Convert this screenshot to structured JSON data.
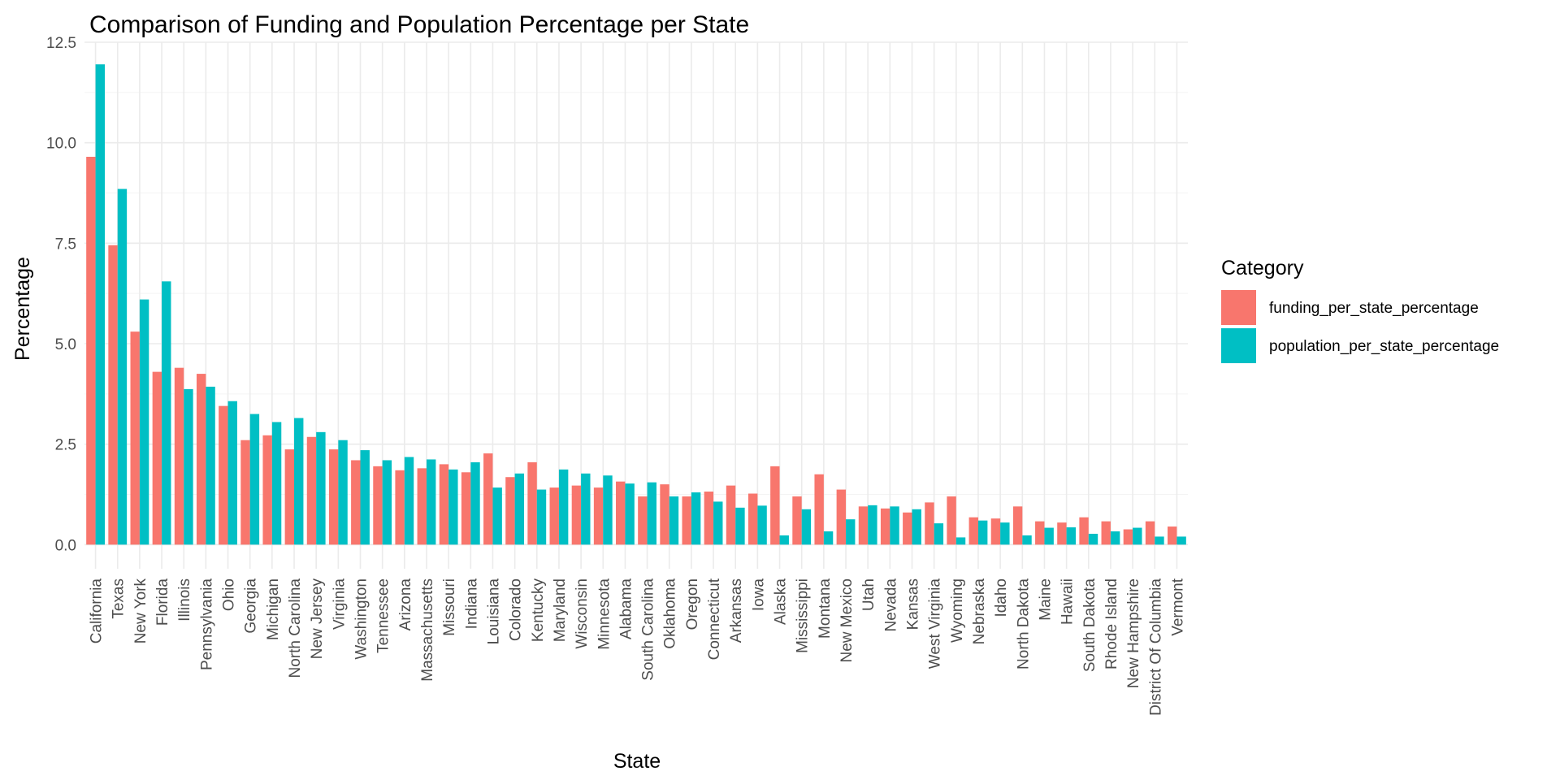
{
  "chart_data": {
    "type": "bar",
    "title": "Comparison of Funding and Population Percentage per State",
    "xlabel": "State",
    "ylabel": "Percentage",
    "ylim": [
      -0.6,
      12.5
    ],
    "yticks": [
      0.0,
      2.5,
      5.0,
      7.5,
      10.0,
      12.5
    ],
    "ytick_labels": [
      "0.0",
      "2.5",
      "5.0",
      "7.5",
      "10.0",
      "12.5"
    ],
    "grid": true,
    "legend": {
      "title": "Category",
      "placement": "right"
    },
    "categories": [
      "California",
      "Texas",
      "New York",
      "Florida",
      "Illinois",
      "Pennsylvania",
      "Ohio",
      "Georgia",
      "Michigan",
      "North Carolina",
      "New Jersey",
      "Virginia",
      "Washington",
      "Tennessee",
      "Arizona",
      "Massachusetts",
      "Missouri",
      "Indiana",
      "Louisiana",
      "Colorado",
      "Kentucky",
      "Maryland",
      "Wisconsin",
      "Minnesota",
      "Alabama",
      "South Carolina",
      "Oklahoma",
      "Oregon",
      "Connecticut",
      "Arkansas",
      "Iowa",
      "Alaska",
      "Mississippi",
      "Montana",
      "New Mexico",
      "Utah",
      "Nevada",
      "Kansas",
      "West Virginia",
      "Wyoming",
      "Nebraska",
      "Idaho",
      "North Dakota",
      "Maine",
      "Hawaii",
      "South Dakota",
      "Rhode Island",
      "New Hampshire",
      "District Of Columbia",
      "Vermont"
    ],
    "series": [
      {
        "name": "funding_per_state_percentage",
        "color": "#F8766D",
        "values": [
          9.65,
          7.45,
          5.3,
          4.3,
          4.4,
          4.25,
          3.45,
          2.6,
          2.72,
          2.37,
          2.68,
          2.37,
          2.1,
          1.95,
          1.85,
          1.9,
          2.0,
          1.8,
          2.27,
          1.68,
          2.05,
          1.42,
          1.47,
          1.42,
          1.57,
          1.2,
          1.5,
          1.2,
          1.32,
          1.47,
          1.27,
          1.95,
          1.2,
          1.75,
          1.37,
          0.95,
          0.9,
          0.8,
          1.05,
          1.2,
          0.68,
          0.65,
          0.95,
          0.58,
          0.55,
          0.68,
          0.58,
          0.38,
          0.58,
          0.45
        ]
      },
      {
        "name": "population_per_state_percentage",
        "color": "#00BFC4",
        "values": [
          11.95,
          8.85,
          6.1,
          6.55,
          3.87,
          3.93,
          3.57,
          3.25,
          3.05,
          3.15,
          2.8,
          2.6,
          2.35,
          2.1,
          2.18,
          2.12,
          1.87,
          2.05,
          1.42,
          1.77,
          1.37,
          1.87,
          1.77,
          1.72,
          1.52,
          1.55,
          1.2,
          1.3,
          1.07,
          0.92,
          0.97,
          0.23,
          0.88,
          0.33,
          0.63,
          0.98,
          0.95,
          0.88,
          0.53,
          0.18,
          0.6,
          0.55,
          0.23,
          0.42,
          0.43,
          0.27,
          0.33,
          0.42,
          0.2,
          0.2
        ]
      }
    ]
  }
}
